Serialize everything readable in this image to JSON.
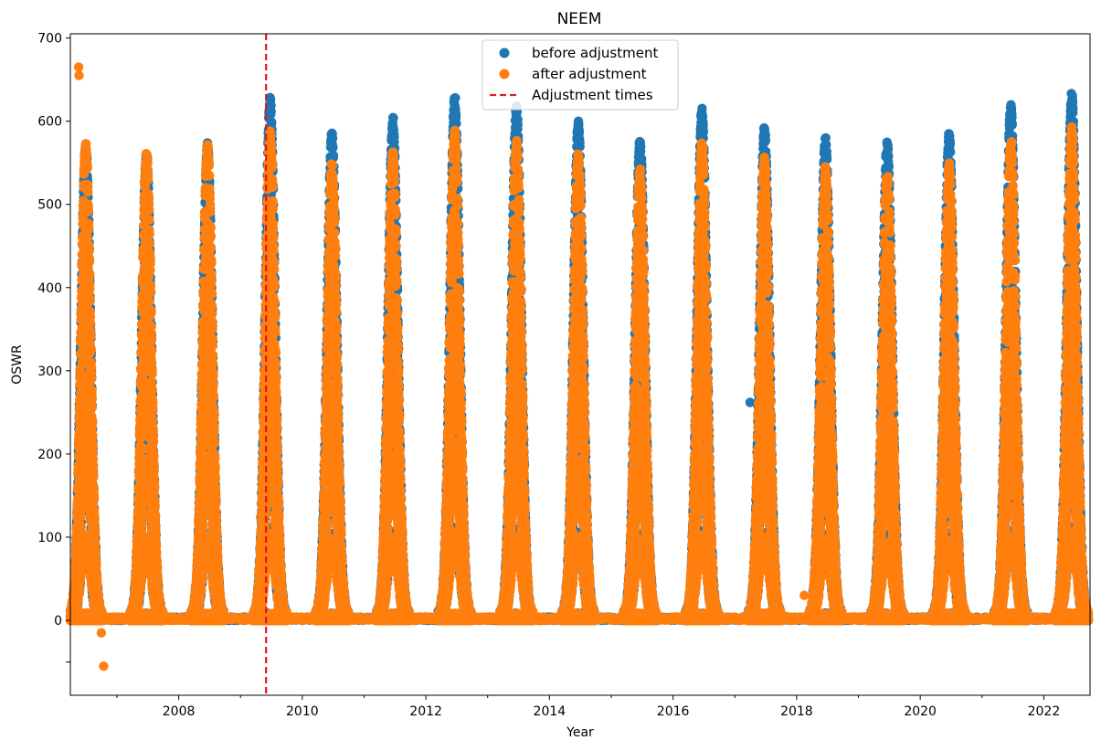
{
  "chart_data": {
    "type": "scatter",
    "title": "NEEM",
    "xlabel": "Year",
    "ylabel": "OSWR",
    "xlim": [
      "2006-04-01",
      "2022-10-01"
    ],
    "ylim": [
      -90,
      705
    ],
    "x_ticks": [
      "2008",
      "2010",
      "2012",
      "2014",
      "2016",
      "2018",
      "2020",
      "2022"
    ],
    "y_ticks": [
      "-50",
      "0",
      "100",
      "200",
      "300",
      "400",
      "500",
      "600",
      "700"
    ],
    "y_tick_labels": [
      "",
      "0",
      "100",
      "200",
      "300",
      "400",
      "500",
      "600",
      "700"
    ],
    "grid": false,
    "legend": {
      "position": "upper center",
      "entries": [
        {
          "label": "before adjustment",
          "color": "#1f77b4",
          "marker": "circle"
        },
        {
          "label": "after adjustment",
          "color": "#ff7f0e",
          "marker": "circle"
        },
        {
          "label": "Adjustment times",
          "color": "#d62728",
          "marker": "dashed-line"
        }
      ]
    },
    "adjustment_times": [
      "2009-06-01"
    ],
    "series": [
      {
        "name": "before adjustment",
        "color": "#1f77b4",
        "seasonal_peaks": [
          {
            "date": "2006-07-01",
            "peak": 565
          },
          {
            "date": "2007-06-25",
            "peak": 555
          },
          {
            "date": "2008-06-20",
            "peak": 565
          },
          {
            "date": "2009-06-25",
            "peak": 620
          },
          {
            "date": "2010-06-25",
            "peak": 580
          },
          {
            "date": "2011-06-20",
            "peak": 597
          },
          {
            "date": "2012-06-20",
            "peak": 623
          },
          {
            "date": "2013-06-20",
            "peak": 612
          },
          {
            "date": "2014-06-20",
            "peak": 592
          },
          {
            "date": "2015-06-20",
            "peak": 572
          },
          {
            "date": "2016-06-20",
            "peak": 607
          },
          {
            "date": "2017-06-25",
            "peak": 587
          },
          {
            "date": "2018-06-20",
            "peak": 573
          },
          {
            "date": "2019-06-20",
            "peak": 568
          },
          {
            "date": "2020-06-20",
            "peak": 578
          },
          {
            "date": "2021-06-20",
            "peak": 613
          },
          {
            "date": "2022-06-15",
            "peak": 626
          }
        ],
        "outliers": [
          {
            "date": "2017-04-01",
            "value": 262
          }
        ]
      },
      {
        "name": "after adjustment",
        "color": "#ff7f0e",
        "seasonal_peaks": [
          {
            "date": "2006-07-01",
            "peak": 565
          },
          {
            "date": "2007-06-25",
            "peak": 555
          },
          {
            "date": "2008-06-20",
            "peak": 565
          },
          {
            "date": "2009-06-25",
            "peak": 580
          },
          {
            "date": "2010-06-25",
            "peak": 542
          },
          {
            "date": "2011-06-20",
            "peak": 556
          },
          {
            "date": "2012-06-20",
            "peak": 582
          },
          {
            "date": "2013-06-20",
            "peak": 571
          },
          {
            "date": "2014-06-20",
            "peak": 553
          },
          {
            "date": "2015-06-20",
            "peak": 534
          },
          {
            "date": "2016-06-20",
            "peak": 567
          },
          {
            "date": "2017-06-25",
            "peak": 548
          },
          {
            "date": "2018-06-20",
            "peak": 537
          },
          {
            "date": "2019-06-20",
            "peak": 532
          },
          {
            "date": "2020-06-20",
            "peak": 541
          },
          {
            "date": "2021-06-20",
            "peak": 572
          },
          {
            "date": "2022-06-15",
            "peak": 585
          }
        ],
        "outliers": [
          {
            "date": "2006-05-20",
            "value": 665
          },
          {
            "date": "2006-05-22",
            "value": 655
          },
          {
            "date": "2006-10-01",
            "value": -15
          },
          {
            "date": "2006-10-15",
            "value": -55
          },
          {
            "date": "2018-02-15",
            "value": 30
          }
        ]
      }
    ]
  }
}
